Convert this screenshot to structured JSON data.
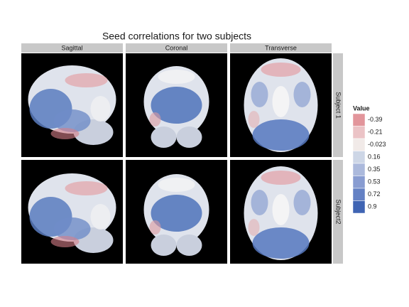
{
  "chart_data": {
    "type": "raster",
    "title": "Seed correlations for two subjects",
    "columns": [
      "Sagittal",
      "Coronal",
      "Transverse"
    ],
    "rows": [
      "Subject 1",
      "Subject2"
    ],
    "legend": {
      "title": "Value",
      "values": [
        -0.39,
        -0.21,
        -0.023,
        0.16,
        0.35,
        0.53,
        0.72,
        0.9
      ],
      "colors": [
        "#e2959b",
        "#ebc3c6",
        "#f1eae8",
        "#cdd6e6",
        "#abb9dc",
        "#889cd1",
        "#6481c4",
        "#3f64b3"
      ]
    }
  }
}
